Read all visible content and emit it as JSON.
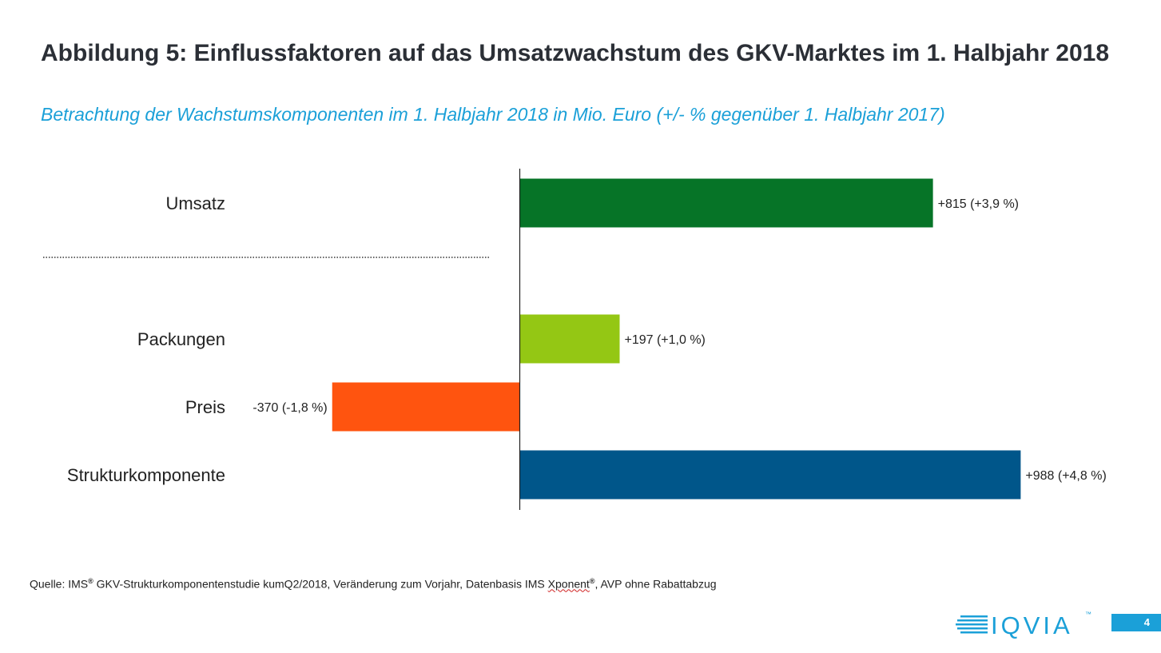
{
  "title": "Abbildung 5: Einflussfaktoren auf das Umsatzwachstum des GKV-Marktes im 1. Halbjahr 2018",
  "subtitle": "Betrachtung der Wachstumskomponenten im 1. Halbjahr 2018 in Mio. Euro (+/- % gegenüber 1. Halbjahr 2017)",
  "chart_data": {
    "type": "bar",
    "orientation": "horizontal",
    "categories": [
      "Umsatz",
      "Packungen",
      "Preis",
      "Strukturkomponente"
    ],
    "values": [
      815,
      197,
      -370,
      988
    ],
    "value_labels": [
      "+815 (+3,9 %)",
      "+197 (+1,0 %)",
      "-370 (-1,8 %)",
      "+988 (+4,8 %)"
    ],
    "percent_change": [
      3.9,
      1.0,
      -1.8,
      4.8
    ],
    "colors": [
      "#067427",
      "#94c714",
      "#ff540f",
      "#00568a"
    ],
    "separator_after_category": "Umsatz",
    "xlabel": "",
    "ylabel": ""
  },
  "source": {
    "prefix": "Quelle: IMS",
    "reg": "®",
    "middle": " GKV-Strukturkomponentenstudie kumQ2/2018, Veränderung zum Vorjahr, Datenbasis IMS ",
    "xponent": "Xponent",
    "suffix": ", AVP ohne Rabattabzug"
  },
  "logo": {
    "text": "IQVIA",
    "tm": "™",
    "color": "#1ba0d8"
  },
  "page_number": "4"
}
